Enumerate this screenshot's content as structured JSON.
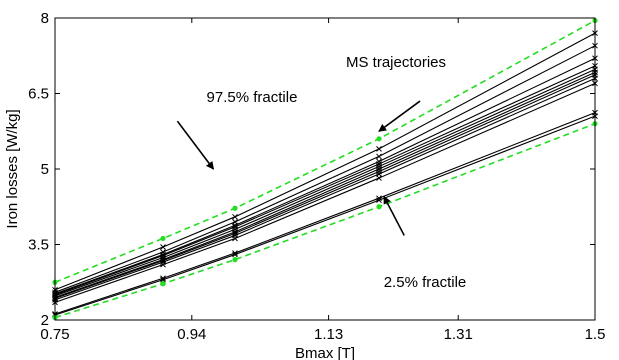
{
  "chart_data": {
    "type": "line",
    "xlabel": "Bmax [T]",
    "ylabel": "Iron losses [W/kg]",
    "xlim": [
      0.75,
      1.5
    ],
    "ylim": [
      2,
      8
    ],
    "xticks": [
      0.75,
      0.94,
      1.13,
      1.31,
      1.5
    ],
    "xtick_labels": [
      "0.75",
      "0.94",
      "1.13",
      "1.31",
      "1.5"
    ],
    "yticks": [
      2,
      3.5,
      5,
      6.5,
      8
    ],
    "ytick_labels": [
      "2",
      "3.5",
      "5",
      "6.5",
      "8"
    ],
    "x": [
      0.75,
      0.9,
      1.0,
      1.2,
      1.5
    ],
    "grid": false,
    "colors": {
      "trajectory": "#000000",
      "fractile": "#22dd22"
    },
    "fractiles": [
      {
        "name": "97.5% fractile",
        "values": [
          2.75,
          3.62,
          4.22,
          5.6,
          7.95
        ]
      },
      {
        "name": "2.5% fractile",
        "values": [
          2.05,
          2.72,
          3.2,
          4.25,
          5.9
        ]
      }
    ],
    "trajectories": [
      {
        "values": [
          2.1,
          2.8,
          3.3,
          4.38,
          6.05
        ]
      },
      {
        "values": [
          2.12,
          2.83,
          3.33,
          4.42,
          6.12
        ]
      },
      {
        "values": [
          2.35,
          3.1,
          3.62,
          4.82,
          6.7
        ]
      },
      {
        "values": [
          2.4,
          3.15,
          3.68,
          4.9,
          6.8
        ]
      },
      {
        "values": [
          2.43,
          3.18,
          3.72,
          4.95,
          6.87
        ]
      },
      {
        "values": [
          2.45,
          3.2,
          3.75,
          5.0,
          6.92
        ]
      },
      {
        "values": [
          2.48,
          3.24,
          3.8,
          5.05,
          6.98
        ]
      },
      {
        "values": [
          2.5,
          3.28,
          3.85,
          5.1,
          7.05
        ]
      },
      {
        "values": [
          2.52,
          3.3,
          3.88,
          5.15,
          7.2
        ]
      },
      {
        "values": [
          2.55,
          3.35,
          3.95,
          5.25,
          7.45
        ]
      },
      {
        "values": [
          2.6,
          3.45,
          4.05,
          5.4,
          7.7
        ]
      }
    ],
    "annotations": [
      {
        "text": "MS trajectories",
        "arrow_from": [
          1.257,
          6.35
        ],
        "arrow_to": [
          1.2,
          5.75
        ]
      },
      {
        "text": "97.5% fractile",
        "arrow_from": [
          0.92,
          5.95
        ],
        "arrow_to": [
          0.97,
          5.0
        ]
      },
      {
        "text": "2.5% fractile",
        "arrow_from": [
          1.235,
          3.68
        ],
        "arrow_to": [
          1.207,
          4.45
        ]
      }
    ]
  }
}
